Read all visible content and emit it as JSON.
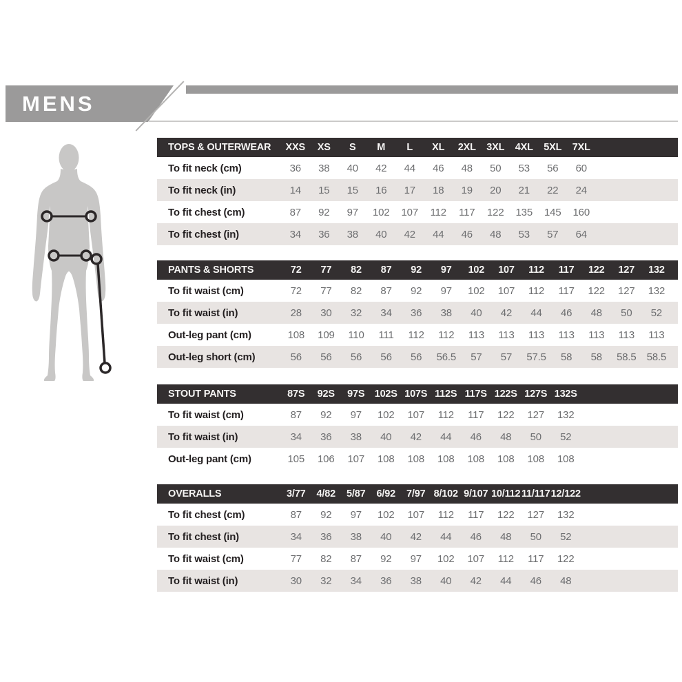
{
  "page": {
    "banner_title": "MENS"
  },
  "colors": {
    "banner_gray": "#9b9a9a",
    "table_header_bg": "#332f30",
    "row_alt_bg": "#e8e4e2",
    "label_text": "#231f20",
    "value_text": "#6d6e70",
    "silhouette_gray": "#c8c7c6",
    "measure_line": "#2b2728"
  },
  "figure": {
    "icon": "mens-body-silhouette",
    "measure_markers": [
      "chest-measure-line",
      "waist-measure-line",
      "out-leg-measure-line"
    ]
  },
  "tables": [
    {
      "title": "TOPS & OUTERWEAR",
      "columns": [
        "XXS",
        "XS",
        "S",
        "M",
        "L",
        "XL",
        "2XL",
        "3XL",
        "4XL",
        "5XL",
        "7XL"
      ],
      "col_width": 41.5,
      "rows": [
        {
          "label": "To fit neck (cm)",
          "values": [
            "36",
            "38",
            "40",
            "42",
            "44",
            "46",
            "48",
            "50",
            "53",
            "56",
            "60"
          ]
        },
        {
          "label": "To fit neck (in)",
          "values": [
            "14",
            "15",
            "15",
            "16",
            "17",
            "18",
            "19",
            "20",
            "21",
            "22",
            "24"
          ]
        },
        {
          "label": "To fit chest (cm)",
          "values": [
            "87",
            "92",
            "97",
            "102",
            "107",
            "112",
            "117",
            "122",
            "135",
            "145",
            "160"
          ]
        },
        {
          "label": "To fit chest (in)",
          "values": [
            "34",
            "36",
            "38",
            "40",
            "42",
            "44",
            "46",
            "48",
            "53",
            "57",
            "64"
          ]
        }
      ]
    },
    {
      "title": "PANTS & SHORTS",
      "columns": [
        "72",
        "77",
        "82",
        "87",
        "92",
        "97",
        "102",
        "107",
        "112",
        "117",
        "122",
        "127",
        "132"
      ],
      "col_width": 43.6,
      "rows": [
        {
          "label": "To fit waist (cm)",
          "values": [
            "72",
            "77",
            "82",
            "87",
            "92",
            "97",
            "102",
            "107",
            "112",
            "117",
            "122",
            "127",
            "132"
          ]
        },
        {
          "label": "To fit waist (in)",
          "values": [
            "28",
            "30",
            "32",
            "34",
            "36",
            "38",
            "40",
            "42",
            "44",
            "46",
            "48",
            "50",
            "52"
          ]
        },
        {
          "label": "Out-leg pant (cm)",
          "values": [
            "108",
            "109",
            "110",
            "111",
            "112",
            "112",
            "113",
            "113",
            "113",
            "113",
            "113",
            "113",
            "113"
          ]
        },
        {
          "label": "Out-leg short (cm)",
          "values": [
            "56",
            "56",
            "56",
            "56",
            "56",
            "56.5",
            "57",
            "57",
            "57.5",
            "58",
            "58",
            "58.5",
            "58.5"
          ]
        }
      ]
    },
    {
      "title": "STOUT PANTS",
      "columns": [
        "87S",
        "92S",
        "97S",
        "102S",
        "107S",
        "112S",
        "117S",
        "122S",
        "127S",
        "132S"
      ],
      "col_width": 43.5,
      "rows": [
        {
          "label": "To fit waist (cm)",
          "values": [
            "87",
            "92",
            "97",
            "102",
            "107",
            "112",
            "117",
            "122",
            "127",
            "132"
          ]
        },
        {
          "label": "To fit waist (in)",
          "values": [
            "34",
            "36",
            "38",
            "40",
            "42",
            "44",
            "46",
            "48",
            "50",
            "52"
          ]
        },
        {
          "label": "Out-leg pant (cm)",
          "values": [
            "105",
            "106",
            "107",
            "108",
            "108",
            "108",
            "108",
            "108",
            "108",
            "108"
          ]
        }
      ]
    },
    {
      "title": "OVERALLS",
      "columns": [
        "3/77",
        "4/82",
        "5/87",
        "6/92",
        "7/97",
        "8/102",
        "9/107",
        "10/112",
        "11/117",
        "12/122"
      ],
      "col_width": 43.5,
      "rows": [
        {
          "label": "To fit chest (cm)",
          "values": [
            "87",
            "92",
            "97",
            "102",
            "107",
            "112",
            "117",
            "122",
            "127",
            "132"
          ]
        },
        {
          "label": "To fit chest (in)",
          "values": [
            "34",
            "36",
            "38",
            "40",
            "42",
            "44",
            "46",
            "48",
            "50",
            "52"
          ]
        },
        {
          "label": "To fit waist (cm)",
          "values": [
            "77",
            "82",
            "87",
            "92",
            "97",
            "102",
            "107",
            "112",
            "117",
            "122"
          ]
        },
        {
          "label": "To fit waist (in)",
          "values": [
            "30",
            "32",
            "34",
            "36",
            "38",
            "40",
            "42",
            "44",
            "46",
            "48"
          ]
        }
      ]
    }
  ]
}
